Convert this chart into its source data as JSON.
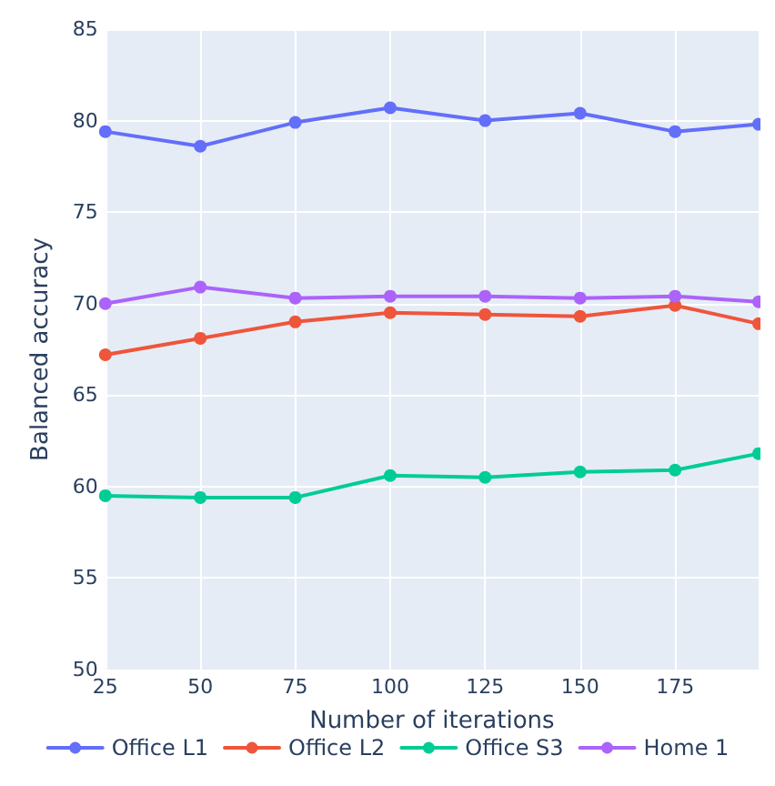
{
  "chart_data": {
    "type": "line",
    "xlabel": "Number of iterations",
    "ylabel": "Balanced accuracy",
    "x": [
      25,
      50,
      75,
      100,
      125,
      150,
      175,
      197
    ],
    "series": [
      {
        "name": "Office L1",
        "color": "#636efa",
        "values": [
          79.4,
          78.6,
          79.9,
          80.7,
          80.0,
          80.4,
          79.4,
          79.8
        ]
      },
      {
        "name": "Office L2",
        "color": "#ef553b",
        "values": [
          67.2,
          68.1,
          69.0,
          69.5,
          69.4,
          69.3,
          69.9,
          68.9
        ]
      },
      {
        "name": "Office S3",
        "color": "#00cc96",
        "values": [
          59.5,
          59.4,
          59.4,
          60.6,
          60.5,
          60.8,
          60.9,
          61.8
        ]
      },
      {
        "name": "Home 1",
        "color": "#ab63fa",
        "values": [
          70.0,
          70.9,
          70.3,
          70.4,
          70.4,
          70.3,
          70.4,
          70.1
        ]
      }
    ],
    "xlim": [
      25,
      197
    ],
    "xticks": [
      25,
      50,
      75,
      100,
      125,
      150,
      175
    ],
    "ylim": [
      50,
      85
    ],
    "yticks": [
      50,
      55,
      60,
      65,
      70,
      75,
      80,
      85
    ],
    "grid": true,
    "legend": "bottom",
    "marker": "circle",
    "line_style": "solid"
  }
}
